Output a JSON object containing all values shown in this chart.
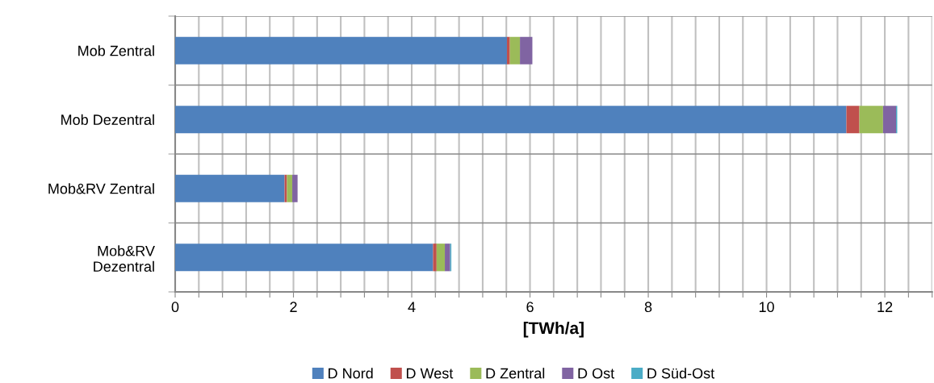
{
  "chart_data": {
    "type": "bar",
    "orientation": "horizontal",
    "stacked": true,
    "categories": [
      "Mob Zentral",
      "Mob Dezentral",
      "Mob&RV Zentral",
      "Mob&RV\nDezentral"
    ],
    "series": [
      {
        "name": "D Nord",
        "color": "#4f81bd",
        "values": [
          5.61,
          11.35,
          1.85,
          4.36
        ]
      },
      {
        "name": "D West",
        "color": "#c0504d",
        "values": [
          0.05,
          0.22,
          0.04,
          0.06
        ]
      },
      {
        "name": "D Zentral",
        "color": "#9bbb59",
        "values": [
          0.17,
          0.4,
          0.09,
          0.14
        ]
      },
      {
        "name": "D Ost",
        "color": "#8064a2",
        "values": [
          0.21,
          0.22,
          0.09,
          0.09
        ]
      },
      {
        "name": "D Süd-Ost",
        "color": "#4bacc6",
        "values": [
          0,
          0.02,
          0,
          0.02
        ]
      }
    ],
    "xlabel": "[TWh/a]",
    "xlim": [
      0,
      12.8
    ],
    "xticks": [
      0,
      {
        "value": 0.4,
        "label": null
      },
      {
        "value": 0.8,
        "label": null
      },
      {
        "value": 1.2,
        "label": null
      },
      {
        "value": 1.6,
        "label": null
      },
      2,
      {
        "value": 2.4,
        "label": null
      },
      {
        "value": 2.8,
        "label": null
      },
      {
        "value": 3.2,
        "label": null
      },
      {
        "value": 3.6,
        "label": null
      },
      4,
      {
        "value": 4.4,
        "label": null
      },
      {
        "value": 4.8,
        "label": null
      },
      {
        "value": 5.2,
        "label": null
      },
      {
        "value": 5.6,
        "label": null
      },
      6,
      {
        "value": 6.4,
        "label": null
      },
      {
        "value": 6.8,
        "label": null
      },
      {
        "value": 7.2,
        "label": null
      },
      {
        "value": 7.6,
        "label": null
      },
      8,
      {
        "value": 8.4,
        "label": null
      },
      {
        "value": 8.8,
        "label": null
      },
      {
        "value": 9.2,
        "label": null
      },
      {
        "value": 9.6,
        "label": null
      },
      10,
      {
        "value": 10.4,
        "label": null
      },
      {
        "value": 10.8,
        "label": null
      },
      {
        "value": 11.2,
        "label": null
      },
      {
        "value": 11.6,
        "label": null
      },
      12,
      {
        "value": 12.4,
        "label": null
      },
      {
        "value": 12.8,
        "label": null
      }
    ],
    "grid": true,
    "legend": "bottom"
  }
}
